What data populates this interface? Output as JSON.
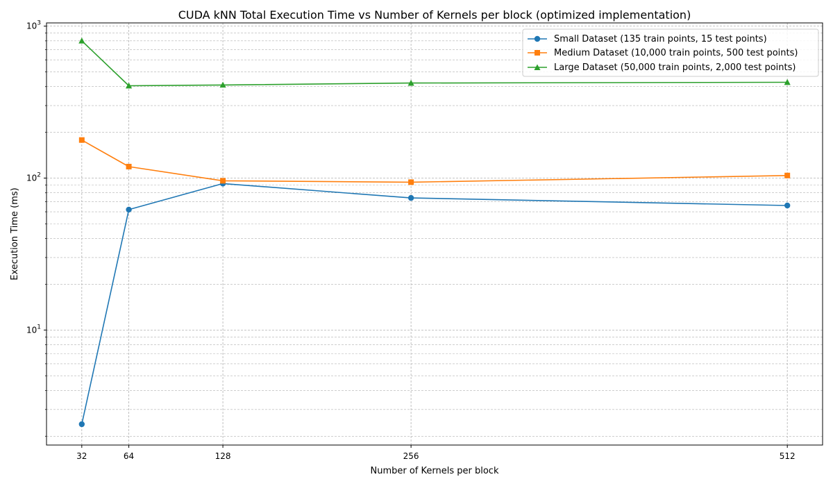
{
  "chart_data": {
    "type": "line",
    "title": "CUDA kNN Total Execution Time vs Number of Kernels per block (optimized implementation)",
    "xlabel": "Number of Kernels per block",
    "ylabel": "Execution Time (ms)",
    "x": [
      32,
      64,
      128,
      256,
      512
    ],
    "x_tick_labels": [
      "32",
      "64",
      "128",
      "256",
      "512"
    ],
    "xlim": [
      8,
      536
    ],
    "y_scale": "log",
    "ylim": [
      1.75,
      1050
    ],
    "y_major_ticks": [
      10,
      100,
      1000
    ],
    "y_tick_labels": [
      "10^1",
      "10^2",
      "10^3"
    ],
    "grid": "both (major and minor), dashed",
    "legend_position": "top-right",
    "series": [
      {
        "name": "Small Dataset (135 train points, 15 test points)",
        "color": "#1f77b4",
        "marker": "circle",
        "values": [
          2.4,
          62,
          92,
          74,
          66
        ]
      },
      {
        "name": "Medium Dataset (10,000 train points, 500 test points)",
        "color": "#ff7f0e",
        "marker": "square",
        "values": [
          178,
          119,
          96,
          94,
          104
        ]
      },
      {
        "name": "Large Dataset (50,000 train points, 2,000 test points)",
        "color": "#2ca02c",
        "marker": "triangle",
        "values": [
          800,
          405,
          410,
          422,
          427
        ]
      }
    ]
  }
}
